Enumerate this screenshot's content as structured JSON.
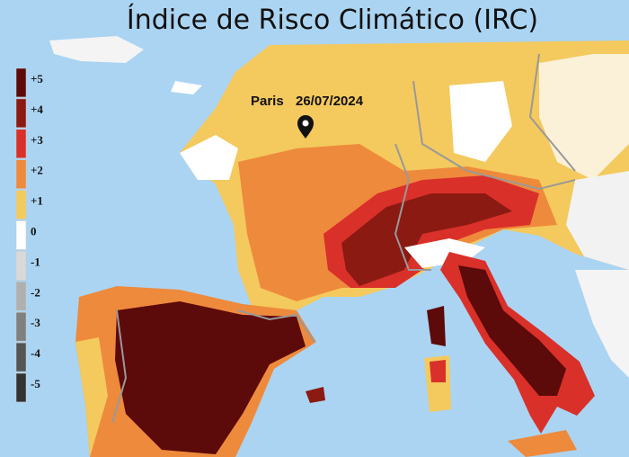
{
  "header": {
    "title": "Índice de Risco Climático (IRC)"
  },
  "legend": {
    "items": [
      {
        "label": "+5",
        "color": "#5c0a0a"
      },
      {
        "label": "+4",
        "color": "#8b1a12"
      },
      {
        "label": "+3",
        "color": "#d9302a"
      },
      {
        "label": "+2",
        "color": "#ee8a3c"
      },
      {
        "label": "+1",
        "color": "#f4c95d"
      },
      {
        "label": "0",
        "color": "#ffffff"
      },
      {
        "label": "-1",
        "color": "#d9d9d9"
      },
      {
        "label": "-2",
        "color": "#b0b0b0"
      },
      {
        "label": "-3",
        "color": "#808080"
      },
      {
        "label": "-4",
        "color": "#555555"
      },
      {
        "label": "-5",
        "color": "#333333"
      }
    ]
  },
  "map": {
    "marker": {
      "city": "Paris",
      "date": "26/07/2024"
    }
  }
}
